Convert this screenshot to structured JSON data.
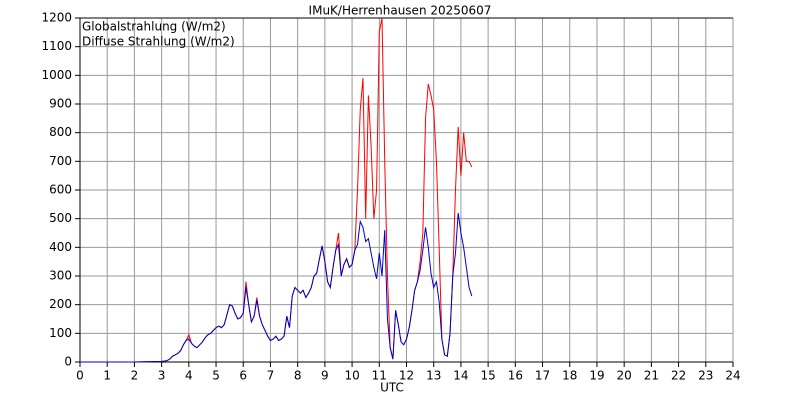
{
  "chart_data": {
    "type": "line",
    "title": "IMuK/Herrenhausen 20250607",
    "x_label": "UTC",
    "x": [
      0,
      1,
      2,
      3.0,
      3.1,
      3.2,
      3.3,
      3.4,
      3.5,
      3.6,
      3.7,
      3.8,
      3.9,
      4.0,
      4.1,
      4.2,
      4.3,
      4.4,
      4.5,
      4.6,
      4.7,
      4.8,
      4.9,
      5.0,
      5.1,
      5.2,
      5.3,
      5.4,
      5.5,
      5.6,
      5.7,
      5.8,
      5.9,
      6.0,
      6.1,
      6.2,
      6.3,
      6.4,
      6.5,
      6.6,
      6.7,
      6.8,
      6.9,
      7.0,
      7.1,
      7.2,
      7.3,
      7.4,
      7.5,
      7.6,
      7.7,
      7.8,
      7.9,
      8.0,
      8.1,
      8.2,
      8.3,
      8.4,
      8.5,
      8.6,
      8.7,
      8.8,
      8.9,
      9.0,
      9.1,
      9.2,
      9.3,
      9.4,
      9.5,
      9.6,
      9.7,
      9.8,
      9.9,
      10.0,
      10.1,
      10.2,
      10.3,
      10.4,
      10.5,
      10.6,
      10.7,
      10.8,
      10.9,
      11.0,
      11.1,
      11.2,
      11.3,
      11.4,
      11.5,
      11.6,
      11.7,
      11.8,
      11.9,
      12.0,
      12.1,
      12.2,
      12.3,
      12.4,
      12.5,
      12.6,
      12.7,
      12.8,
      12.9,
      13.0,
      13.1,
      13.2,
      13.3,
      13.4,
      13.5,
      13.6,
      13.7,
      13.8,
      13.9,
      14.0,
      14.1,
      14.2,
      14.3,
      14.4
    ],
    "series": [
      {
        "name": "Globalstrahlung (W/m2)",
        "color": "#ff0000",
        "values": [
          0,
          0,
          0,
          2,
          3,
          5,
          10,
          20,
          25,
          30,
          40,
          60,
          75,
          95,
          65,
          55,
          50,
          60,
          70,
          85,
          95,
          100,
          110,
          120,
          125,
          120,
          130,
          165,
          200,
          195,
          170,
          150,
          155,
          170,
          280,
          200,
          140,
          160,
          225,
          160,
          130,
          110,
          90,
          75,
          80,
          90,
          75,
          80,
          90,
          160,
          120,
          230,
          260,
          250,
          240,
          250,
          225,
          240,
          260,
          300,
          310,
          360,
          405,
          350,
          280,
          260,
          330,
          390,
          450,
          300,
          340,
          360,
          330,
          340,
          390,
          600,
          880,
          990,
          500,
          930,
          750,
          500,
          600,
          1150,
          1200,
          700,
          300,
          50,
          10,
          180,
          130,
          70,
          60,
          80,
          120,
          180,
          250,
          280,
          350,
          450,
          850,
          970,
          930,
          880,
          700,
          400,
          80,
          25,
          20,
          100,
          300,
          600,
          820,
          650,
          800,
          700,
          700,
          680
        ]
      },
      {
        "name": "Diffuse Strahlung (W/m2)",
        "color": "#0000cc",
        "values": [
          0,
          0,
          0,
          2,
          3,
          5,
          10,
          20,
          25,
          30,
          40,
          60,
          75,
          80,
          65,
          55,
          50,
          60,
          70,
          85,
          95,
          100,
          110,
          120,
          125,
          120,
          130,
          165,
          200,
          195,
          170,
          150,
          155,
          170,
          260,
          200,
          140,
          160,
          215,
          160,
          130,
          110,
          90,
          75,
          80,
          90,
          75,
          80,
          90,
          160,
          120,
          230,
          260,
          250,
          240,
          250,
          225,
          240,
          260,
          300,
          310,
          360,
          405,
          350,
          280,
          260,
          330,
          390,
          410,
          300,
          340,
          360,
          330,
          340,
          390,
          410,
          490,
          470,
          420,
          430,
          380,
          330,
          290,
          380,
          300,
          460,
          150,
          50,
          10,
          180,
          130,
          70,
          60,
          80,
          120,
          180,
          250,
          280,
          320,
          390,
          470,
          400,
          310,
          260,
          280,
          210,
          80,
          25,
          20,
          100,
          300,
          380,
          520,
          450,
          400,
          330,
          260,
          230
        ]
      }
    ],
    "xlim": [
      0,
      24
    ],
    "xticks": [
      0,
      1,
      2,
      3,
      4,
      5,
      6,
      7,
      8,
      9,
      10,
      11,
      12,
      13,
      14,
      15,
      16,
      17,
      18,
      19,
      20,
      21,
      22,
      23,
      24
    ],
    "ylim": [
      0,
      1200
    ],
    "yticks": [
      0,
      100,
      200,
      300,
      400,
      500,
      600,
      700,
      800,
      900,
      1000,
      1100,
      1200
    ],
    "grid": true
  }
}
